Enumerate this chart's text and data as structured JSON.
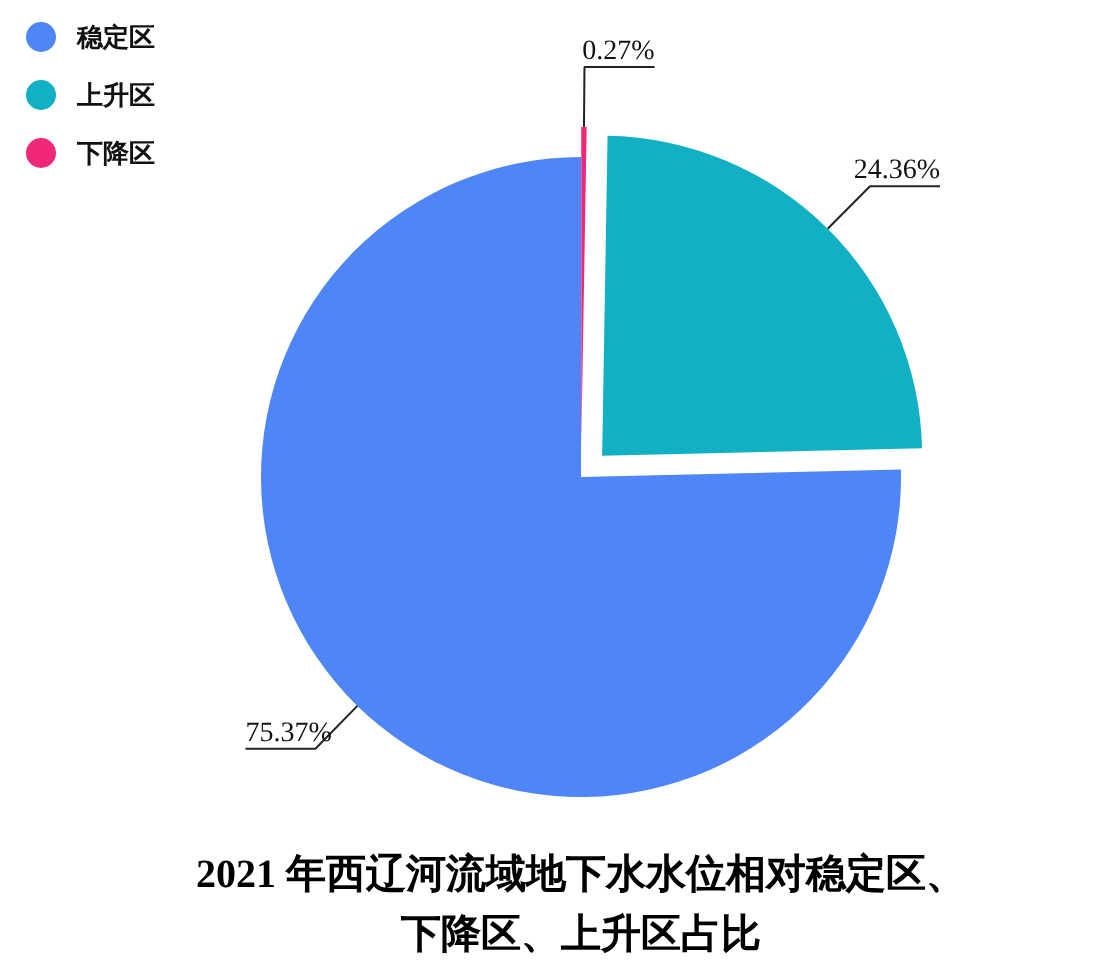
{
  "chart_data": {
    "type": "pie",
    "title": "2021 年西辽河流域地下水水位相对稳定区、下降区、上升区占比",
    "categories": [
      "下降区",
      "上升区",
      "稳定区"
    ],
    "values": [
      0.27,
      24.36,
      75.37
    ],
    "colors": [
      "#f0287a",
      "#12b0c4",
      "#4f86f7"
    ],
    "value_labels": [
      "0.27%",
      "24.36%",
      "75.37%"
    ],
    "legend": "top left"
  }
}
